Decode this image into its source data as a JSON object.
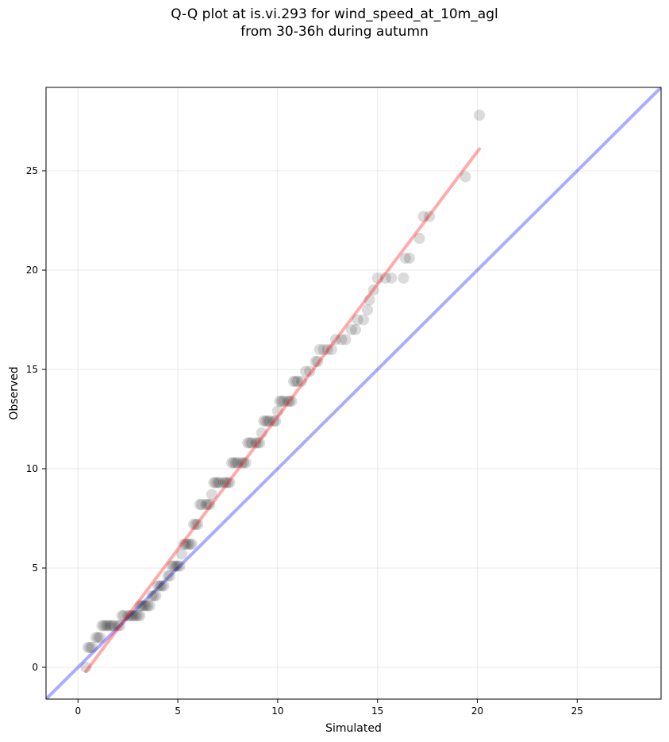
{
  "chart_data": {
    "type": "scatter",
    "title_line1": "Q-Q plot at is.vi.293 for wind_speed_at_10m_agl",
    "title_line2": "from 30-36h during autumn",
    "xlabel": "Simulated",
    "ylabel": "Observed",
    "xlim": [
      -1.6,
      29.2
    ],
    "ylim": [
      -1.6,
      29.2
    ],
    "xticks": [
      0,
      5,
      10,
      15,
      20,
      25
    ],
    "yticks": [
      0,
      5,
      10,
      15,
      20,
      25
    ],
    "grid": true,
    "points": [
      [
        0.4,
        0.0
      ],
      [
        0.5,
        1.0
      ],
      [
        0.6,
        1.0
      ],
      [
        0.7,
        1.0
      ],
      [
        0.9,
        1.5
      ],
      [
        1.0,
        1.5
      ],
      [
        1.1,
        1.5
      ],
      [
        1.2,
        2.1
      ],
      [
        1.3,
        2.1
      ],
      [
        1.4,
        2.1
      ],
      [
        1.5,
        2.1
      ],
      [
        1.6,
        2.1
      ],
      [
        1.7,
        2.1
      ],
      [
        1.8,
        2.1
      ],
      [
        2.0,
        2.1
      ],
      [
        2.1,
        2.1
      ],
      [
        2.2,
        2.6
      ],
      [
        2.3,
        2.6
      ],
      [
        2.5,
        2.6
      ],
      [
        2.6,
        2.6
      ],
      [
        2.7,
        2.6
      ],
      [
        2.8,
        2.6
      ],
      [
        2.9,
        2.6
      ],
      [
        3.0,
        2.6
      ],
      [
        3.1,
        2.6
      ],
      [
        3.1,
        3.1
      ],
      [
        3.2,
        3.1
      ],
      [
        3.3,
        3.1
      ],
      [
        3.4,
        3.1
      ],
      [
        3.5,
        3.1
      ],
      [
        3.6,
        3.1
      ],
      [
        3.7,
        3.6
      ],
      [
        3.8,
        3.6
      ],
      [
        3.9,
        3.6
      ],
      [
        4.0,
        4.1
      ],
      [
        4.1,
        4.1
      ],
      [
        4.2,
        4.1
      ],
      [
        4.3,
        4.1
      ],
      [
        4.5,
        4.6
      ],
      [
        4.6,
        4.6
      ],
      [
        4.7,
        5.1
      ],
      [
        4.8,
        5.1
      ],
      [
        4.9,
        5.1
      ],
      [
        5.0,
        5.1
      ],
      [
        5.1,
        5.1
      ],
      [
        5.2,
        5.7
      ],
      [
        5.3,
        6.2
      ],
      [
        5.4,
        6.2
      ],
      [
        5.5,
        6.2
      ],
      [
        5.6,
        6.2
      ],
      [
        5.7,
        6.2
      ],
      [
        5.8,
        7.2
      ],
      [
        5.9,
        7.2
      ],
      [
        6.0,
        7.2
      ],
      [
        6.1,
        8.2
      ],
      [
        6.2,
        8.2
      ],
      [
        6.4,
        8.2
      ],
      [
        6.5,
        8.2
      ],
      [
        6.6,
        8.2
      ],
      [
        6.7,
        8.7
      ],
      [
        6.8,
        9.3
      ],
      [
        6.9,
        9.3
      ],
      [
        7.0,
        9.3
      ],
      [
        7.1,
        9.3
      ],
      [
        7.3,
        9.3
      ],
      [
        7.4,
        9.3
      ],
      [
        7.5,
        9.3
      ],
      [
        7.6,
        9.3
      ],
      [
        7.7,
        10.3
      ],
      [
        7.8,
        10.3
      ],
      [
        7.9,
        10.3
      ],
      [
        8.0,
        10.3
      ],
      [
        8.2,
        10.3
      ],
      [
        8.3,
        10.3
      ],
      [
        8.4,
        10.3
      ],
      [
        8.5,
        11.3
      ],
      [
        8.6,
        11.3
      ],
      [
        8.7,
        11.3
      ],
      [
        8.9,
        11.3
      ],
      [
        9.0,
        11.3
      ],
      [
        9.1,
        11.3
      ],
      [
        9.2,
        11.8
      ],
      [
        9.3,
        12.4
      ],
      [
        9.4,
        12.4
      ],
      [
        9.5,
        12.4
      ],
      [
        9.6,
        12.4
      ],
      [
        9.8,
        12.4
      ],
      [
        9.9,
        12.4
      ],
      [
        10.0,
        12.9
      ],
      [
        10.1,
        13.4
      ],
      [
        10.2,
        13.4
      ],
      [
        10.3,
        13.4
      ],
      [
        10.5,
        13.4
      ],
      [
        10.6,
        13.4
      ],
      [
        10.7,
        13.4
      ],
      [
        10.8,
        14.4
      ],
      [
        10.9,
        14.4
      ],
      [
        11.0,
        14.4
      ],
      [
        11.2,
        14.4
      ],
      [
        11.4,
        14.9
      ],
      [
        11.6,
        14.9
      ],
      [
        11.9,
        15.4
      ],
      [
        12.0,
        15.4
      ],
      [
        12.1,
        16.0
      ],
      [
        12.3,
        16.0
      ],
      [
        12.5,
        16.0
      ],
      [
        12.7,
        16.0
      ],
      [
        12.9,
        16.5
      ],
      [
        13.2,
        16.5
      ],
      [
        13.4,
        16.5
      ],
      [
        13.7,
        17.0
      ],
      [
        13.9,
        17.0
      ],
      [
        14.0,
        17.5
      ],
      [
        14.3,
        17.5
      ],
      [
        14.5,
        18.0
      ],
      [
        14.6,
        18.5
      ],
      [
        14.8,
        19.0
      ],
      [
        15.0,
        19.6
      ],
      [
        15.4,
        19.6
      ],
      [
        15.7,
        19.6
      ],
      [
        16.3,
        19.6
      ],
      [
        16.4,
        20.6
      ],
      [
        16.6,
        20.6
      ],
      [
        17.1,
        21.6
      ],
      [
        17.3,
        22.7
      ],
      [
        17.6,
        22.7
      ],
      [
        19.4,
        24.7
      ],
      [
        20.1,
        27.8
      ]
    ],
    "reference_line": [
      [
        -1.6,
        -1.6
      ],
      [
        29.2,
        29.2
      ]
    ],
    "fit_line": [
      [
        0.4,
        -0.2
      ],
      [
        20.1,
        26.1
      ]
    ],
    "colors": {
      "points": "#000000",
      "reference_line": "#0000ff",
      "fit_line": "#ff0000",
      "grid": "#cccccc"
    }
  }
}
